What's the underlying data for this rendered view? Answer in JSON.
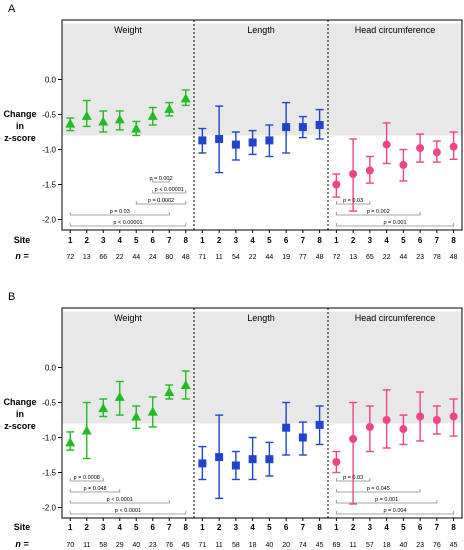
{
  "chart_data": [
    {
      "type": "scatter",
      "panel_letter": "A",
      "ylabel": "Change in z-score",
      "y_ticks": [
        "0.0",
        "-0.5",
        "-1.0",
        "-1.5",
        "-2.0"
      ],
      "ylim": [
        -2.15,
        0.85
      ],
      "shaded_band": [
        -0.8,
        0.8
      ],
      "site_label": "Site",
      "n_label": "n =",
      "sites": [
        "1",
        "2",
        "3",
        "4",
        "5",
        "6",
        "7",
        "8"
      ],
      "marker_colors": {
        "Weight": "#22bb22",
        "Length": "#2244cc",
        "Head circumference": "#ee4488"
      },
      "panels": [
        {
          "title": "Weight",
          "marker": "triangle",
          "values": [
            -0.63,
            -0.52,
            -0.6,
            -0.57,
            -0.7,
            -0.52,
            -0.42,
            -0.27
          ],
          "lower": [
            -0.73,
            -0.67,
            -0.75,
            -0.72,
            -0.8,
            -0.65,
            -0.52,
            -0.37
          ],
          "upper": [
            -0.55,
            -0.3,
            -0.45,
            -0.45,
            -0.6,
            -0.4,
            -0.33,
            -0.15
          ],
          "n": [
            "72",
            "13",
            "66",
            "22",
            "44",
            "24",
            "80",
            "48"
          ],
          "comparisons": [
            {
              "from": "6",
              "to": "7",
              "p": "p = 0.002"
            },
            {
              "from": "6",
              "to": "8",
              "p": "p < 0.00001"
            },
            {
              "from": "5",
              "to": "8",
              "p": "p = 0.0002"
            },
            {
              "from": "1",
              "to": "7",
              "p": "p = 0.03"
            },
            {
              "from": "1",
              "to": "8",
              "p": "p < 0.00001"
            }
          ]
        },
        {
          "title": "Length",
          "marker": "square",
          "values": [
            -0.87,
            -0.85,
            -0.93,
            -0.9,
            -0.87,
            -0.68,
            -0.68,
            -0.65
          ],
          "lower": [
            -1.05,
            -1.33,
            -1.15,
            -1.07,
            -1.1,
            -1.05,
            -0.83,
            -0.85
          ],
          "upper": [
            -0.7,
            -0.38,
            -0.75,
            -0.73,
            -0.65,
            -0.33,
            -0.53,
            -0.43
          ],
          "n": [
            "71",
            "11",
            "54",
            "22",
            "44",
            "19",
            "77",
            "48"
          ],
          "comparisons": []
        },
        {
          "title": "Head circumference",
          "marker": "circle",
          "values": [
            -1.5,
            -1.35,
            -1.3,
            -0.93,
            -1.22,
            -0.98,
            -1.04,
            -0.96
          ],
          "lower": [
            -1.68,
            -1.88,
            -1.48,
            -1.2,
            -1.45,
            -1.18,
            -1.18,
            -1.14
          ],
          "upper": [
            -1.35,
            -0.85,
            -1.1,
            -0.62,
            -1.0,
            -0.78,
            -0.88,
            -0.75
          ],
          "n": [
            "72",
            "13",
            "65",
            "22",
            "44",
            "23",
            "78",
            "48"
          ],
          "comparisons": [
            {
              "from": "1",
              "to": "3",
              "p": "p = 0.03"
            },
            {
              "from": "1",
              "to": "6",
              "p": "p = 0.002"
            },
            {
              "from": "1",
              "to": "8",
              "p": "p = 0.001"
            }
          ]
        }
      ]
    },
    {
      "type": "scatter",
      "panel_letter": "B",
      "ylabel": "Change in z-score",
      "y_ticks": [
        "0.0",
        "-0.5",
        "-1.0",
        "-1.5",
        "-2.0"
      ],
      "ylim": [
        -2.15,
        0.85
      ],
      "shaded_band": [
        -0.8,
        0.8
      ],
      "site_label": "Site",
      "n_label": "n =",
      "sites": [
        "1",
        "2",
        "3",
        "4",
        "5",
        "6",
        "7",
        "8"
      ],
      "marker_colors": {
        "Weight": "#22bb22",
        "Length": "#2244cc",
        "Head circumference": "#ee4488"
      },
      "panels": [
        {
          "title": "Weight",
          "marker": "triangle",
          "values": [
            -1.07,
            -0.9,
            -0.58,
            -0.42,
            -0.7,
            -0.63,
            -0.35,
            -0.25
          ],
          "lower": [
            -1.18,
            -1.3,
            -0.7,
            -0.68,
            -0.87,
            -0.85,
            -0.45,
            -0.45
          ],
          "upper": [
            -0.92,
            -0.5,
            -0.45,
            -0.2,
            -0.55,
            -0.42,
            -0.25,
            -0.05
          ],
          "n": [
            "70",
            "11",
            "58",
            "29",
            "40",
            "23",
            "76",
            "45"
          ],
          "comparisons": [
            {
              "from": "1",
              "to": "3",
              "p": "p = 0.0008"
            },
            {
              "from": "1",
              "to": "4",
              "p": "p = 0.048"
            },
            {
              "from": "1",
              "to": "7",
              "p": "p < 0.0001"
            },
            {
              "from": "1",
              "to": "8",
              "p": "p < 0.0001"
            }
          ]
        },
        {
          "title": "Length",
          "marker": "square",
          "values": [
            -1.37,
            -1.28,
            -1.4,
            -1.31,
            -1.31,
            -0.86,
            -1.0,
            -0.82
          ],
          "lower": [
            -1.6,
            -1.87,
            -1.6,
            -1.6,
            -1.55,
            -1.25,
            -1.25,
            -1.1
          ],
          "upper": [
            -1.13,
            -0.68,
            -1.2,
            -1.0,
            -1.07,
            -0.5,
            -0.78,
            -0.55
          ],
          "n": [
            "71",
            "11",
            "58",
            "18",
            "40",
            "20",
            "74",
            "45"
          ],
          "comparisons": []
        },
        {
          "title": "Head circumference",
          "marker": "circle",
          "values": [
            -1.35,
            -1.02,
            -0.85,
            -0.75,
            -0.88,
            -0.7,
            -0.75,
            -0.7
          ],
          "lower": [
            -1.5,
            -1.95,
            -1.2,
            -1.15,
            -1.1,
            -1.05,
            -0.95,
            -0.98
          ],
          "upper": [
            -1.2,
            -0.5,
            -0.55,
            -0.32,
            -0.68,
            -0.35,
            -0.55,
            -0.45
          ],
          "n": [
            "69",
            "11",
            "57",
            "18",
            "40",
            "23",
            "76",
            "45"
          ],
          "comparisons": [
            {
              "from": "1",
              "to": "3",
              "p": "p = 0.03"
            },
            {
              "from": "1",
              "to": "6",
              "p": "p = 0.045"
            },
            {
              "from": "1",
              "to": "7",
              "p": "p = 0.001"
            },
            {
              "from": "1",
              "to": "8",
              "p": "p = 0.004"
            }
          ]
        }
      ]
    }
  ]
}
